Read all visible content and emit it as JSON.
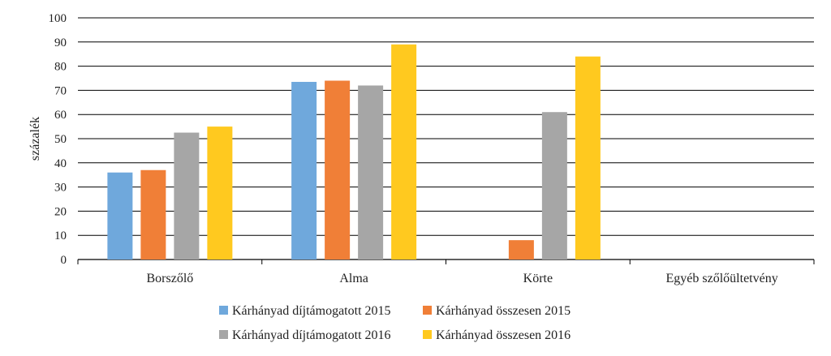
{
  "chart_data": {
    "type": "bar",
    "title": "",
    "xlabel": "",
    "ylabel": "százalék",
    "ylim": [
      0,
      100
    ],
    "yticks": [
      0,
      10,
      20,
      30,
      40,
      50,
      60,
      70,
      80,
      90,
      100
    ],
    "grid": true,
    "legend_position": "bottom",
    "categories": [
      "Borszőlő",
      "Alma",
      "Körte",
      "Egyéb szőlőültetvény"
    ],
    "series": [
      {
        "name": "Kárhányad díjtámogatott 2015",
        "color": "#6FA8DC",
        "values": [
          36,
          73.5,
          null,
          null
        ]
      },
      {
        "name": "Kárhányad összesen 2015",
        "color": "#F07F37",
        "values": [
          37,
          74,
          8,
          null
        ]
      },
      {
        "name": "Kárhányad díjtámogatott 2016",
        "color": "#A6A6A6",
        "values": [
          52.5,
          72,
          61,
          null
        ]
      },
      {
        "name": "Kárhányad összesen 2016",
        "color": "#FFC91F",
        "values": [
          55,
          89,
          84,
          null
        ]
      }
    ]
  }
}
